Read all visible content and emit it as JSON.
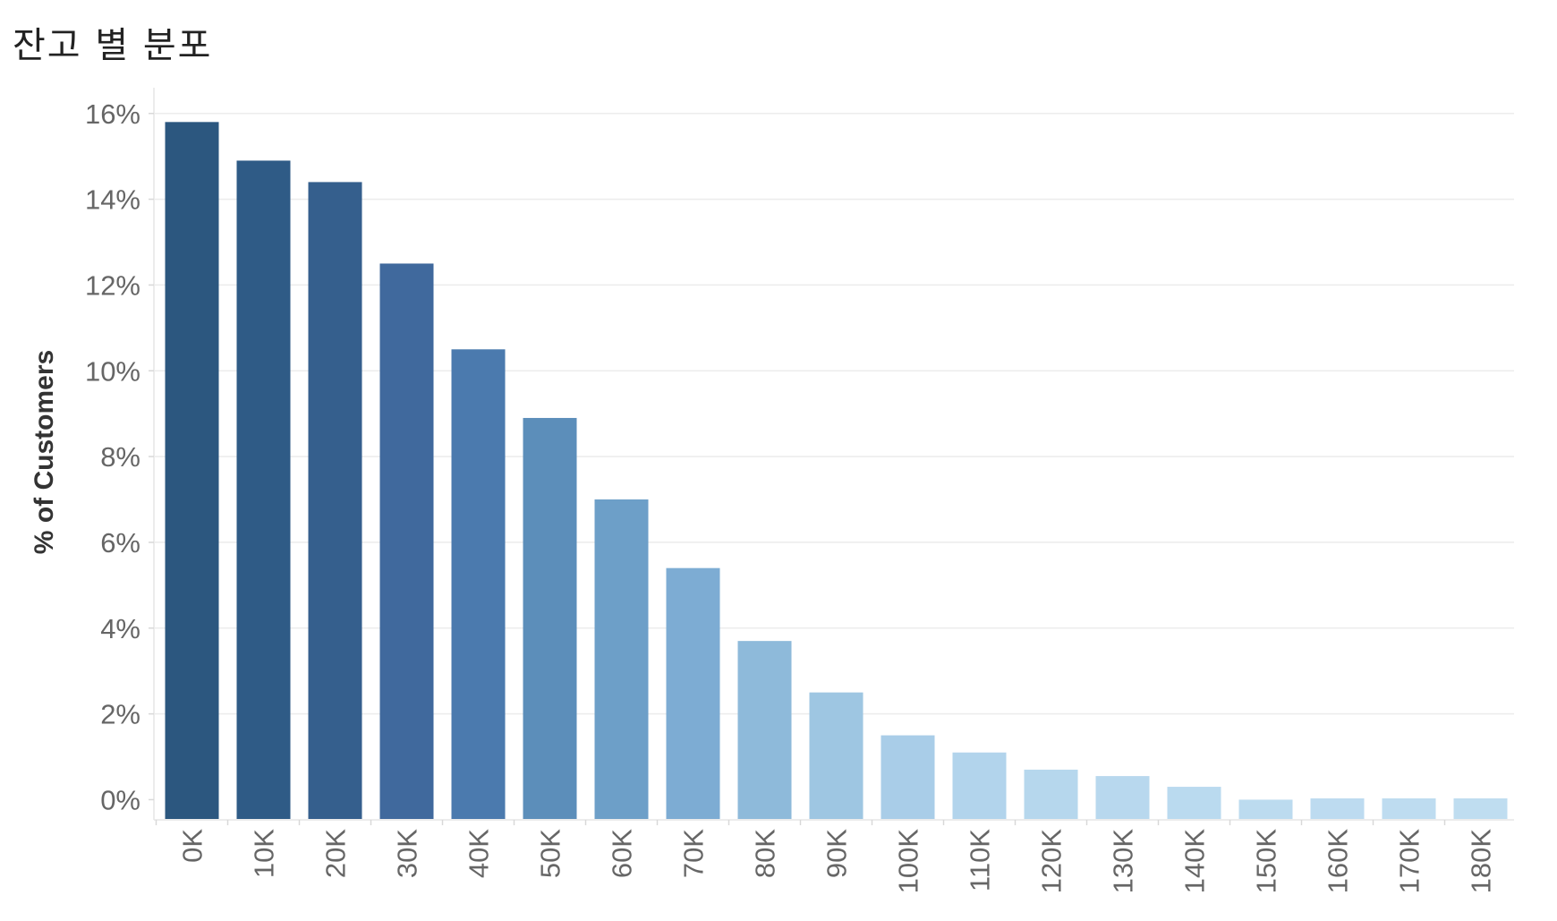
{
  "chart_data": {
    "type": "bar",
    "title": "잔고 별 분포",
    "xlabel": "",
    "ylabel": "% of Customers",
    "categories": [
      "0K",
      "10K",
      "20K",
      "30K",
      "40K",
      "50K",
      "60K",
      "70K",
      "80K",
      "90K",
      "100K",
      "110K",
      "120K",
      "130K",
      "140K",
      "150K",
      "160K",
      "170K",
      "180K"
    ],
    "values": [
      15.8,
      14.9,
      14.4,
      12.5,
      10.5,
      8.9,
      7.0,
      5.4,
      3.7,
      2.5,
      1.5,
      1.1,
      0.7,
      0.55,
      0.3,
      0.0,
      0.03,
      0.03,
      0.03
    ],
    "ylim": [
      -0.45,
      16.6
    ],
    "yticks": [
      0,
      2,
      4,
      6,
      8,
      10,
      12,
      14,
      16
    ],
    "ytick_labels": [
      "0%",
      "2%",
      "4%",
      "6%",
      "8%",
      "10%",
      "12%",
      "14%",
      "16%"
    ],
    "grid": true,
    "legend": "none",
    "colors": [
      "#2c577f",
      "#2f5b86",
      "#355f8d",
      "#40699d",
      "#4b7aae",
      "#5c8eba",
      "#6d9fc8",
      "#7dacd3",
      "#8ebada",
      "#9ec6e2",
      "#a9cde8",
      "#b2d4ec",
      "#b6d7ed",
      "#b8d8ee",
      "#badaef",
      "#bcdbef",
      "#bddbf0",
      "#bedcf0",
      "#bfddf0"
    ]
  }
}
